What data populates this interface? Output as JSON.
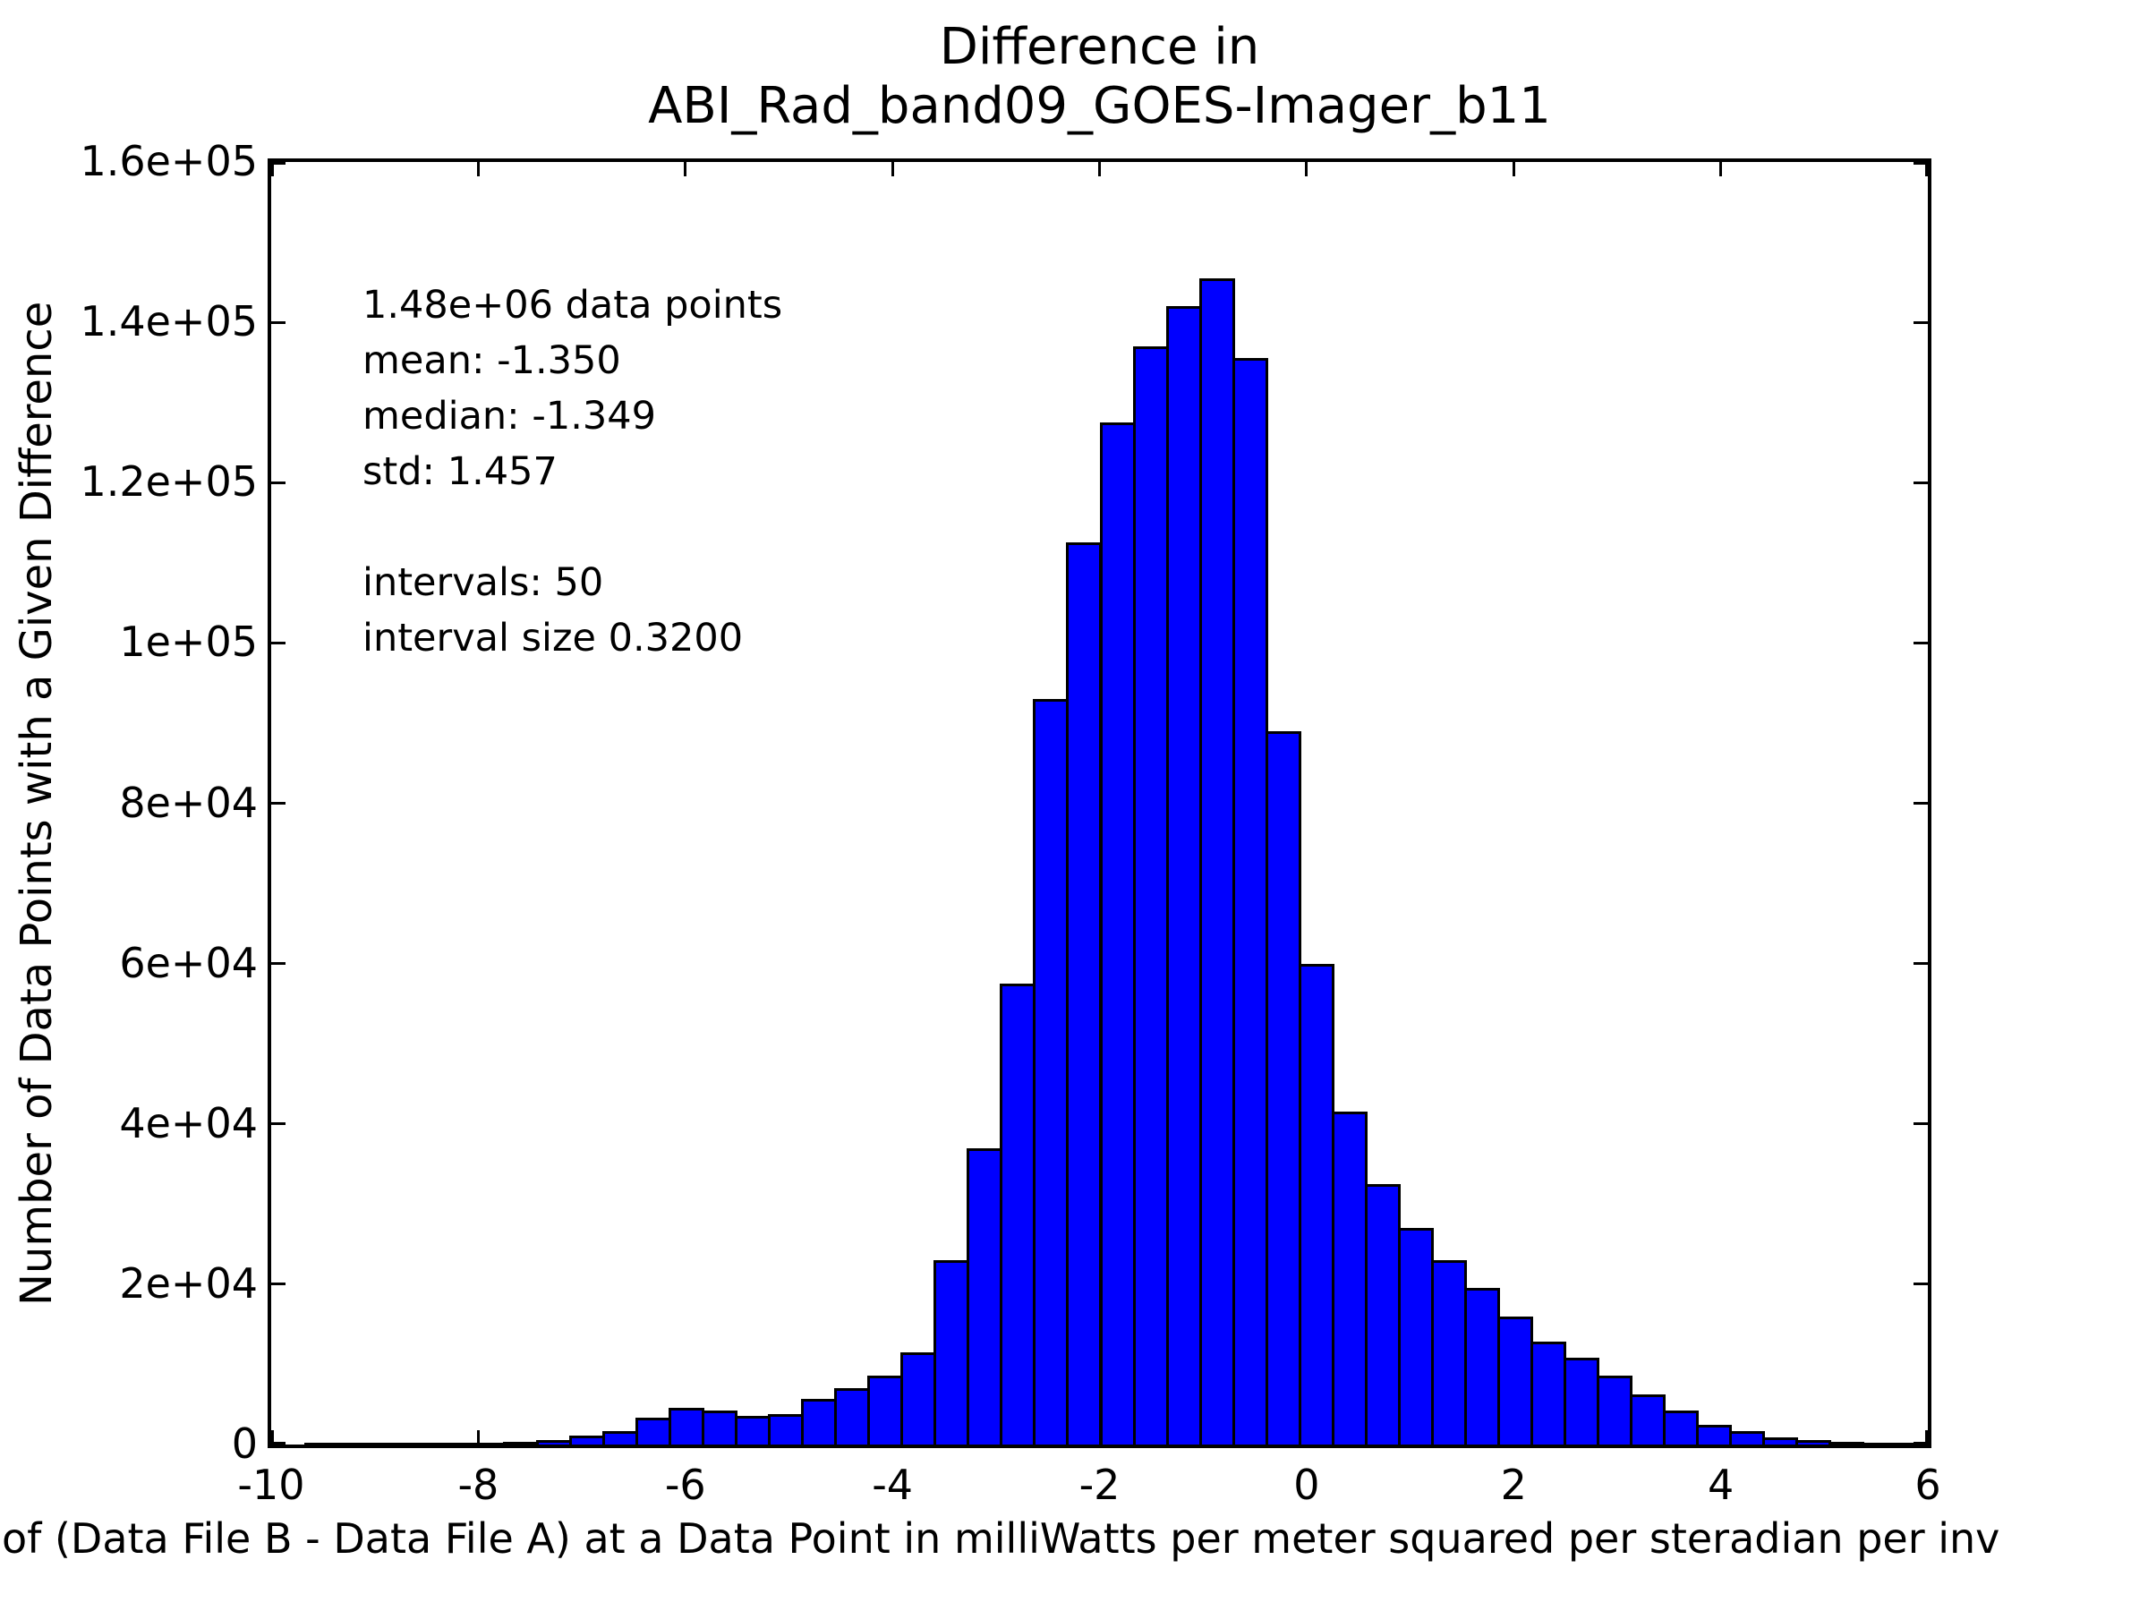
{
  "title": {
    "line1": "Difference in",
    "line2": "ABI_Rad_band09_GOES-Imager_b11"
  },
  "stats": {
    "lines": [
      "1.48e+06 data points",
      "mean: -1.350",
      "median: -1.349",
      "std: 1.457",
      "",
      "intervals: 50",
      "interval size 0.3200"
    ]
  },
  "axes": {
    "ylabel": "Number of Data Points with a Given Difference",
    "xlabel_visible": "of (Data File B - Data File A) at a Data Point in milliWatts per meter squared per steradian per inv",
    "xtick_labels": [
      "-10",
      "-8",
      "-6",
      "-4",
      "-2",
      "0",
      "2",
      "4",
      "6"
    ],
    "xtick_values": [
      -10,
      -8,
      -6,
      -4,
      -2,
      0,
      2,
      4,
      6
    ],
    "ytick_labels": [
      "0",
      "2e+04",
      "4e+04",
      "6e+04",
      "8e+04",
      "1e+05",
      "1.2e+05",
      "1.4e+05",
      "1.6e+05"
    ],
    "ytick_values": [
      0,
      20000,
      40000,
      60000,
      80000,
      100000,
      120000,
      140000,
      160000
    ]
  },
  "colors": {
    "bar_fill": "#0000ff",
    "bar_edge": "#000000",
    "text": "#000000",
    "background": "#ffffff"
  },
  "chart_data": {
    "type": "bar",
    "subtype": "histogram",
    "title": "Difference in ABI_Rad_band09_GOES-Imager_b11",
    "xlabel": "of (Data File B - Data File A) at a Data Point in milliWatts per meter squared per steradian per inv",
    "ylabel": "Number of Data Points with a Given Difference",
    "xlim": [
      -10,
      6
    ],
    "ylim": [
      0,
      160000
    ],
    "grid": false,
    "legend": "none",
    "intervals": 50,
    "interval_size": 0.32,
    "bin_start": -10,
    "total_data_points": 1480000,
    "mean": -1.35,
    "median": -1.349,
    "std": 1.457,
    "values": [
      0,
      30,
      50,
      80,
      120,
      180,
      250,
      350,
      600,
      1100,
      1700,
      3300,
      4600,
      4200,
      3600,
      3800,
      5700,
      7000,
      8600,
      11500,
      23000,
      37000,
      57500,
      93000,
      112500,
      127500,
      137000,
      142000,
      145500,
      135500,
      89000,
      60000,
      41500,
      32500,
      27000,
      23000,
      19500,
      16000,
      12800,
      10800,
      8600,
      6300,
      4300,
      2500,
      1700,
      950,
      600,
      350,
      200,
      100
    ]
  }
}
